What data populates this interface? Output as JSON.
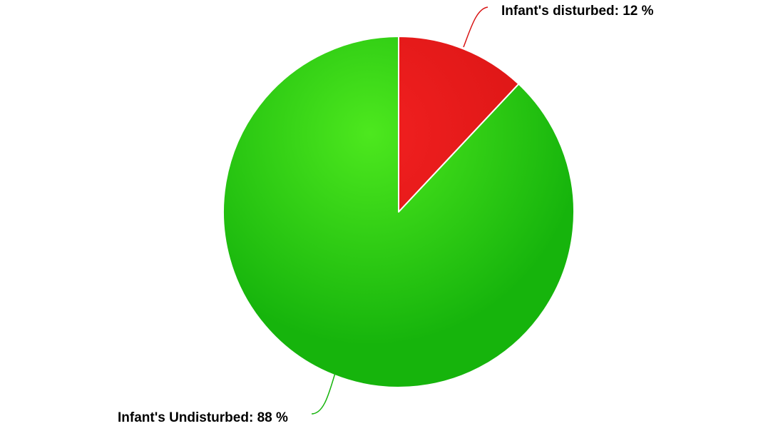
{
  "chart_data": {
    "type": "pie",
    "title": "",
    "slices": [
      {
        "label": "Infant's disturbed",
        "value": 12,
        "color": "#d81414",
        "highlight": "#f22020"
      },
      {
        "label": "Infant's Undisturbed",
        "value": 88,
        "color": "#16b40c",
        "highlight": "#4de81e"
      }
    ],
    "data_labels": [
      "Infant's disturbed: 12 %",
      "Infant's Undisturbed: 88 %"
    ],
    "start_angle_deg": 0,
    "direction": "clockwise",
    "legend": "none"
  }
}
